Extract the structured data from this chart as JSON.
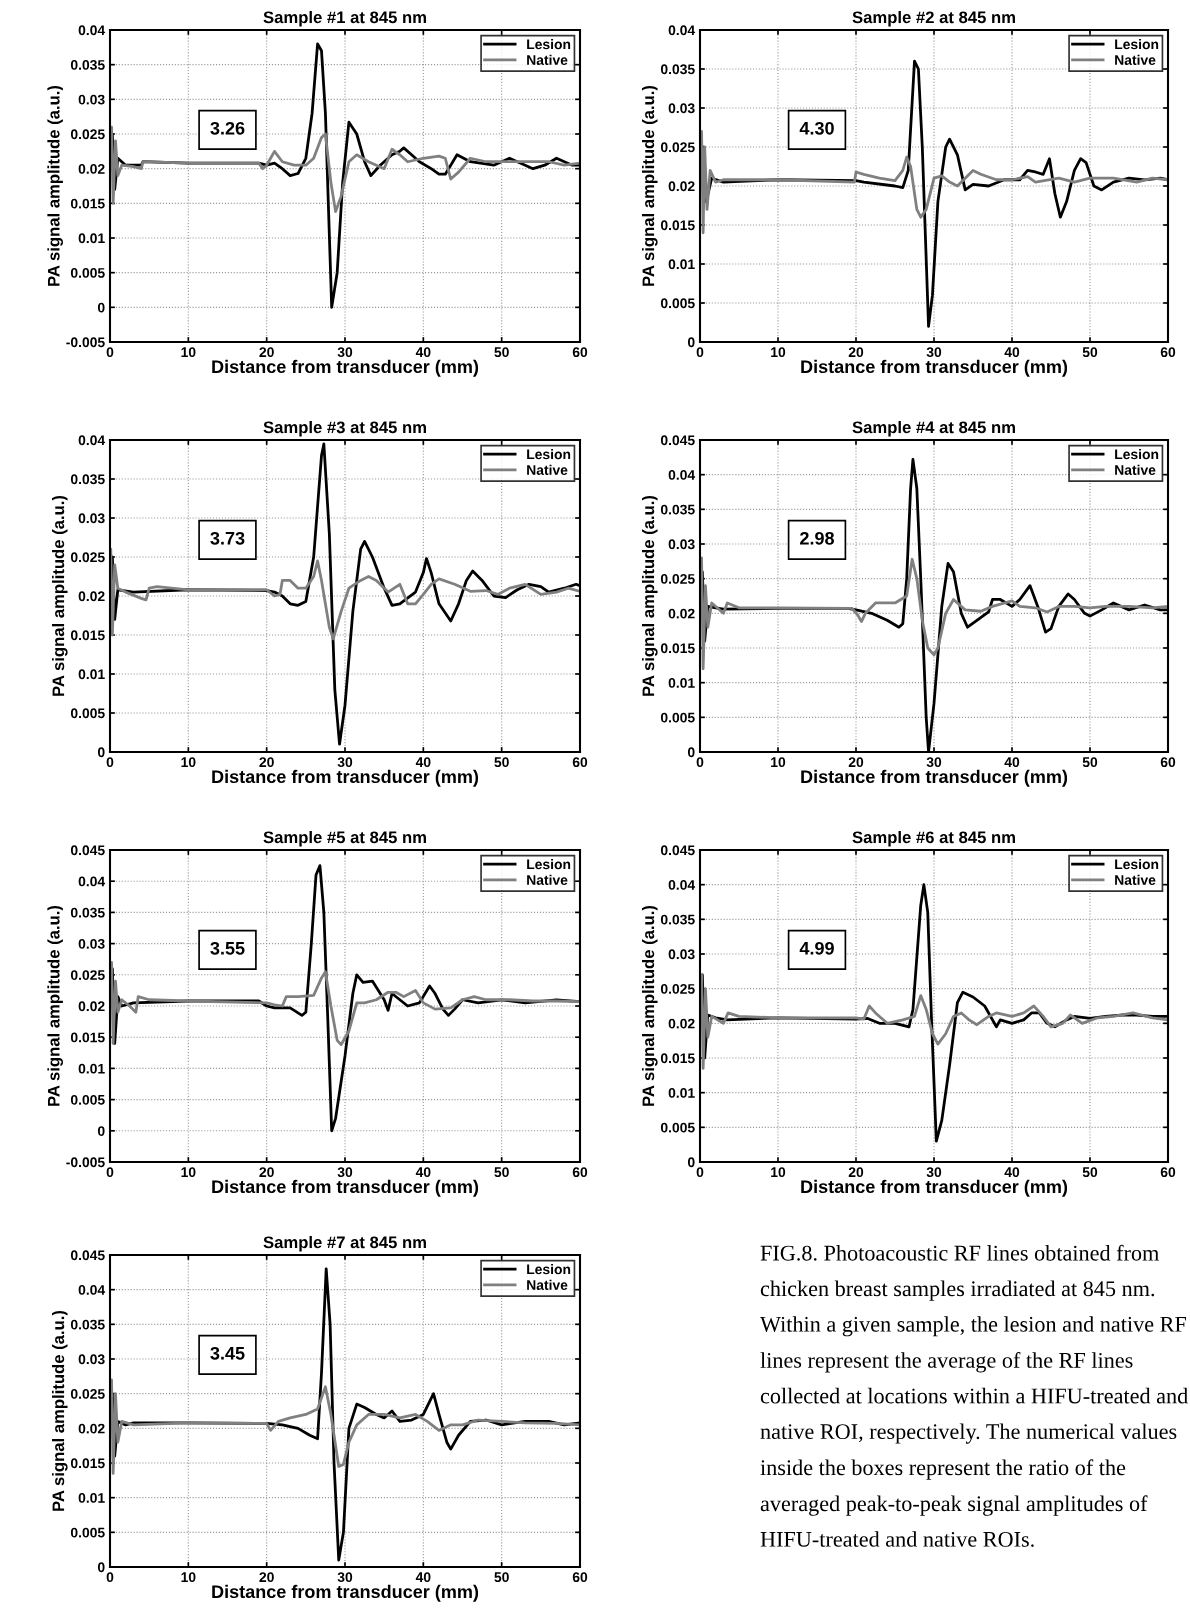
{
  "chart_data": [
    {
      "type": "line",
      "title": "Sample #1 at 845 nm",
      "xlabel": "Distance from transducer (mm)",
      "ylabel": "PA signal amplitude (a.u.)",
      "xlim": [
        0,
        60
      ],
      "xticks": [
        0,
        10,
        20,
        30,
        40,
        50,
        60
      ],
      "ylim": [
        -0.005,
        0.04
      ],
      "yticks": [
        -0.005,
        0,
        0.005,
        0.01,
        0.015,
        0.02,
        0.025,
        0.03,
        0.035,
        0.04
      ],
      "grid": true,
      "legend": "top right",
      "line_style": "solid",
      "annotations": [
        "3.26"
      ],
      "series": [
        {
          "name": "Lesion",
          "color": "#000000",
          "x": [
            0,
            0.3,
            0.6,
            1,
            2,
            4,
            4.2,
            10,
            19,
            20,
            21,
            22,
            23,
            24,
            25,
            25.8,
            26.5,
            27,
            27.5,
            28.3,
            29,
            29.7,
            30.5,
            31.5,
            32.5,
            33.3,
            34.5,
            36,
            37,
            37.5,
            38.5,
            39.5,
            41,
            42,
            42.8,
            43.5,
            44.3,
            46,
            49,
            51,
            52,
            54,
            55.5,
            57,
            59,
            60
          ],
          "values": [
            0.021,
            0.025,
            0.017,
            0.0215,
            0.0205,
            0.0205,
            0.021,
            0.0208,
            0.0208,
            0.0205,
            0.0208,
            0.02,
            0.019,
            0.0193,
            0.0215,
            0.028,
            0.038,
            0.037,
            0.028,
            0.0,
            0.005,
            0.018,
            0.0267,
            0.025,
            0.021,
            0.019,
            0.0205,
            0.022,
            0.0225,
            0.023,
            0.022,
            0.021,
            0.02,
            0.0192,
            0.0192,
            0.0205,
            0.022,
            0.021,
            0.0205,
            0.0215,
            0.021,
            0.02,
            0.0205,
            0.0215,
            0.0205,
            0.0205
          ]
        },
        {
          "name": "Native",
          "color": "#808080",
          "x": [
            0,
            0.2,
            0.4,
            0.7,
            1,
            1.5,
            3,
            4,
            4.2,
            10,
            19,
            19.5,
            20,
            20.5,
            21,
            22,
            23.5,
            25,
            26,
            27,
            27.5,
            28.2,
            28.8,
            29.5,
            30.5,
            31.5,
            33,
            35,
            36,
            37,
            38,
            40,
            42,
            42.8,
            43.5,
            44.5,
            46,
            48,
            51,
            53,
            56,
            58,
            60
          ],
          "values": [
            0.02,
            0.026,
            0.015,
            0.024,
            0.019,
            0.0205,
            0.0203,
            0.02,
            0.021,
            0.0208,
            0.0208,
            0.02,
            0.0205,
            0.0215,
            0.0225,
            0.021,
            0.0205,
            0.0205,
            0.0215,
            0.0245,
            0.025,
            0.018,
            0.0138,
            0.016,
            0.021,
            0.022,
            0.021,
            0.02,
            0.0228,
            0.022,
            0.021,
            0.0215,
            0.0218,
            0.0215,
            0.0185,
            0.0195,
            0.0215,
            0.021,
            0.021,
            0.021,
            0.021,
            0.0205,
            0.0208
          ]
        }
      ]
    },
    {
      "type": "line",
      "title": "Sample #2 at 845 nm",
      "xlabel": "Distance from transducer (mm)",
      "ylabel": "PA signal amplitude (a.u.)",
      "xlim": [
        0,
        60
      ],
      "xticks": [
        0,
        10,
        20,
        30,
        40,
        50,
        60
      ],
      "ylim": [
        0,
        0.04
      ],
      "yticks": [
        0,
        0.005,
        0.01,
        0.015,
        0.02,
        0.025,
        0.03,
        0.035,
        0.04
      ],
      "grid": true,
      "legend": "top right",
      "line_style": "solid",
      "annotations": [
        "4.30"
      ],
      "series": [
        {
          "name": "Lesion",
          "color": "#000000",
          "x": [
            0,
            0.4,
            0.8,
            1.5,
            3,
            10,
            20,
            21,
            25,
            26,
            26.7,
            27.5,
            28,
            28.5,
            29.3,
            29.8,
            30.5,
            31.5,
            32,
            33,
            34,
            35,
            37,
            39,
            41,
            42,
            43,
            44,
            44.8,
            45.5,
            46.2,
            47,
            48,
            48.8,
            49.5,
            50.5,
            51.5,
            53,
            55,
            57,
            59,
            60
          ],
          "values": [
            0.021,
            0.025,
            0.018,
            0.021,
            0.0205,
            0.0208,
            0.0207,
            0.0205,
            0.02,
            0.0198,
            0.022,
            0.036,
            0.035,
            0.025,
            0.002,
            0.006,
            0.018,
            0.025,
            0.026,
            0.024,
            0.0195,
            0.0202,
            0.02,
            0.0208,
            0.0208,
            0.022,
            0.0218,
            0.0215,
            0.0235,
            0.019,
            0.016,
            0.018,
            0.022,
            0.0235,
            0.023,
            0.02,
            0.0195,
            0.0205,
            0.021,
            0.0208,
            0.021,
            0.0208
          ]
        },
        {
          "name": "Native",
          "color": "#808080",
          "x": [
            0,
            0.2,
            0.4,
            0.6,
            0.9,
            1.3,
            2,
            3,
            10,
            19.8,
            20,
            21,
            23,
            25,
            26,
            26.5,
            27,
            27.8,
            28.3,
            29,
            30,
            31,
            32,
            33,
            34,
            35,
            36,
            38,
            40,
            42,
            43,
            46,
            48,
            50,
            53,
            56,
            58,
            60
          ],
          "values": [
            0.02,
            0.027,
            0.014,
            0.025,
            0.017,
            0.022,
            0.0205,
            0.0208,
            0.0208,
            0.0205,
            0.0218,
            0.0215,
            0.021,
            0.0207,
            0.022,
            0.0237,
            0.0225,
            0.017,
            0.016,
            0.017,
            0.021,
            0.0213,
            0.0205,
            0.02,
            0.021,
            0.022,
            0.0215,
            0.0208,
            0.0208,
            0.0212,
            0.0205,
            0.021,
            0.0205,
            0.021,
            0.021,
            0.0205,
            0.021,
            0.0208
          ]
        }
      ]
    },
    {
      "type": "line",
      "title": "Sample #3 at 845 nm",
      "xlabel": "Distance from transducer (mm)",
      "ylabel": "PA signal amplitude (a.u.)",
      "xlim": [
        0,
        60
      ],
      "xticks": [
        0,
        10,
        20,
        30,
        40,
        50,
        60
      ],
      "ylim": [
        0,
        0.04
      ],
      "yticks": [
        0,
        0.005,
        0.01,
        0.015,
        0.02,
        0.025,
        0.03,
        0.035,
        0.04
      ],
      "grid": true,
      "legend": "top right",
      "line_style": "solid",
      "annotations": [
        "3.73"
      ],
      "series": [
        {
          "name": "Lesion",
          "color": "#000000",
          "x": [
            0,
            0.3,
            0.6,
            1,
            3,
            10,
            20,
            21,
            22,
            23,
            24,
            25,
            26,
            27,
            27.3,
            28,
            28.7,
            29.3,
            30,
            31,
            32,
            32.5,
            33.5,
            35,
            36,
            37,
            39,
            40,
            40.4,
            41,
            42,
            43.5,
            44.5,
            45.5,
            46.3,
            47.5,
            49,
            50.5,
            52,
            53.5,
            55,
            56,
            58,
            59.5,
            60
          ],
          "values": [
            0.021,
            0.025,
            0.017,
            0.0208,
            0.0205,
            0.0208,
            0.0207,
            0.0205,
            0.02,
            0.019,
            0.0188,
            0.0193,
            0.025,
            0.038,
            0.0395,
            0.028,
            0.008,
            0.001,
            0.006,
            0.018,
            0.026,
            0.027,
            0.025,
            0.021,
            0.0188,
            0.019,
            0.0205,
            0.023,
            0.0248,
            0.023,
            0.019,
            0.0168,
            0.019,
            0.022,
            0.0232,
            0.022,
            0.02,
            0.0198,
            0.0208,
            0.0215,
            0.0212,
            0.0205,
            0.021,
            0.0215,
            0.0213
          ]
        },
        {
          "name": "Native",
          "color": "#808080",
          "x": [
            0,
            0.1,
            0.3,
            0.6,
            1,
            2,
            4,
            4.6,
            5,
            6,
            10,
            20,
            21,
            21.7,
            22,
            23,
            24,
            25,
            26,
            26.5,
            27,
            28,
            28.5,
            29.5,
            30.5,
            32,
            33,
            34,
            35.5,
            37,
            38,
            39,
            40,
            41,
            42,
            44,
            46,
            48,
            49.5,
            51,
            53,
            55,
            57,
            58.5,
            60
          ],
          "values": [
            0.02,
            0.026,
            0.015,
            0.024,
            0.021,
            0.0205,
            0.0197,
            0.0195,
            0.021,
            0.0212,
            0.0208,
            0.0208,
            0.02,
            0.0202,
            0.022,
            0.022,
            0.021,
            0.021,
            0.0225,
            0.0245,
            0.022,
            0.016,
            0.0145,
            0.018,
            0.021,
            0.022,
            0.0225,
            0.022,
            0.0205,
            0.0215,
            0.019,
            0.019,
            0.0202,
            0.0215,
            0.0222,
            0.0215,
            0.0206,
            0.0207,
            0.0202,
            0.021,
            0.0215,
            0.0202,
            0.0205,
            0.021,
            0.0206
          ]
        }
      ]
    },
    {
      "type": "line",
      "title": "Sample #4 at 845 nm",
      "xlabel": "Distance from transducer (mm)",
      "ylabel": "PA signal amplitude (a.u.)",
      "xlim": [
        0,
        60
      ],
      "xticks": [
        0,
        10,
        20,
        30,
        40,
        50,
        60
      ],
      "ylim": [
        0,
        0.045
      ],
      "yticks": [
        0,
        0.005,
        0.01,
        0.015,
        0.02,
        0.025,
        0.03,
        0.035,
        0.04,
        0.045
      ],
      "grid": true,
      "legend": "top right",
      "line_style": "solid",
      "annotations": [
        "2.98"
      ],
      "series": [
        {
          "name": "Lesion",
          "color": "#000000",
          "x": [
            0,
            0.3,
            0.6,
            1,
            2,
            3,
            10,
            19,
            20,
            22,
            24,
            25.5,
            26,
            26.5,
            27,
            27.3,
            27.8,
            28.3,
            29,
            29.3,
            30,
            31,
            31.8,
            32.5,
            33.5,
            34.3,
            35.5,
            37,
            37.5,
            38.5,
            40,
            41,
            42.3,
            43.3,
            44.3,
            45,
            46,
            47.2,
            48,
            49.3,
            50,
            51.5,
            53,
            55,
            57,
            59,
            60
          ],
          "values": [
            0.021,
            0.026,
            0.016,
            0.021,
            0.0208,
            0.0206,
            0.0207,
            0.0207,
            0.0205,
            0.02,
            0.019,
            0.018,
            0.0185,
            0.025,
            0.038,
            0.0422,
            0.038,
            0.025,
            0.005,
            0.0,
            0.007,
            0.021,
            0.0272,
            0.026,
            0.02,
            0.018,
            0.019,
            0.0202,
            0.022,
            0.022,
            0.021,
            0.022,
            0.024,
            0.021,
            0.0173,
            0.0178,
            0.021,
            0.0228,
            0.022,
            0.02,
            0.0196,
            0.0205,
            0.0215,
            0.0205,
            0.0212,
            0.0205,
            0.0205
          ]
        },
        {
          "name": "Native",
          "color": "#808080",
          "x": [
            0,
            0.2,
            0.4,
            0.7,
            1,
            1.5,
            3,
            3.5,
            5,
            10,
            19.5,
            20.2,
            20.7,
            21.2,
            22.5,
            25,
            26.5,
            27.2,
            27.8,
            28.5,
            29.2,
            30,
            30.5,
            31.5,
            32.5,
            34,
            36,
            37.5,
            40,
            41,
            43,
            44.5,
            46,
            48,
            50,
            52,
            55,
            58,
            60
          ],
          "values": [
            0.02,
            0.028,
            0.012,
            0.024,
            0.018,
            0.0215,
            0.02,
            0.0215,
            0.0208,
            0.0208,
            0.0207,
            0.0198,
            0.0188,
            0.02,
            0.0215,
            0.0215,
            0.0225,
            0.0278,
            0.025,
            0.019,
            0.015,
            0.014,
            0.015,
            0.02,
            0.022,
            0.0205,
            0.0203,
            0.021,
            0.0218,
            0.021,
            0.0208,
            0.0202,
            0.021,
            0.021,
            0.0208,
            0.021,
            0.021,
            0.0208,
            0.021
          ]
        }
      ]
    },
    {
      "type": "line",
      "title": "Sample #5 at 845 nm",
      "xlabel": "Distance from transducer (mm)",
      "ylabel": "PA signal amplitude (a.u.)",
      "xlim": [
        0,
        60
      ],
      "xticks": [
        0,
        10,
        20,
        30,
        40,
        50,
        60
      ],
      "ylim": [
        -0.005,
        0.045
      ],
      "yticks": [
        -0.005,
        0,
        0.005,
        0.01,
        0.015,
        0.02,
        0.025,
        0.03,
        0.035,
        0.04,
        0.045
      ],
      "grid": true,
      "legend": "top right",
      "line_style": "solid",
      "annotations": [
        "3.55"
      ],
      "series": [
        {
          "name": "Lesion",
          "color": "#000000",
          "x": [
            0,
            0.3,
            0.6,
            1,
            1.5,
            3,
            10,
            19,
            20,
            21,
            23,
            24.5,
            25,
            25.7,
            26.3,
            26.8,
            27.3,
            27.8,
            28.3,
            28.8,
            30,
            31,
            31.5,
            32.3,
            33.5,
            35,
            35.5,
            36,
            38,
            39.5,
            40.8,
            41.5,
            42.5,
            43.2,
            44,
            45,
            47,
            50,
            53,
            57,
            60
          ],
          "values": [
            0.021,
            0.026,
            0.014,
            0.0215,
            0.02,
            0.0205,
            0.0208,
            0.0208,
            0.02,
            0.0197,
            0.0197,
            0.0185,
            0.019,
            0.03,
            0.041,
            0.0425,
            0.035,
            0.018,
            0.0,
            0.002,
            0.012,
            0.022,
            0.025,
            0.0238,
            0.024,
            0.021,
            0.0193,
            0.022,
            0.02,
            0.0205,
            0.0232,
            0.022,
            0.0195,
            0.0185,
            0.0195,
            0.021,
            0.0205,
            0.021,
            0.0205,
            0.021,
            0.0207
          ]
        },
        {
          "name": "Native",
          "color": "#808080",
          "x": [
            0,
            0.2,
            0.4,
            0.7,
            1,
            1.5,
            2.5,
            3.3,
            3.6,
            5,
            10,
            20,
            21,
            22,
            22.5,
            24,
            26,
            27,
            27.5,
            28.2,
            29,
            29.5,
            30.5,
            31.5,
            32.5,
            34,
            35.5,
            36.5,
            37.5,
            39,
            40,
            41.5,
            43.5,
            45,
            46.5,
            48,
            51,
            54,
            57,
            60
          ],
          "values": [
            0.02,
            0.027,
            0.014,
            0.024,
            0.019,
            0.021,
            0.02,
            0.019,
            0.0215,
            0.021,
            0.0208,
            0.0205,
            0.0202,
            0.02,
            0.0215,
            0.0215,
            0.0217,
            0.0245,
            0.0255,
            0.02,
            0.0145,
            0.0138,
            0.016,
            0.0205,
            0.0205,
            0.021,
            0.0222,
            0.0222,
            0.0215,
            0.0225,
            0.0205,
            0.0195,
            0.0197,
            0.021,
            0.0215,
            0.021,
            0.021,
            0.0208,
            0.0208,
            0.0207
          ]
        }
      ]
    },
    {
      "type": "line",
      "title": "Sample #6 at 845 nm",
      "xlabel": "Distance from transducer (mm)",
      "ylabel": "PA signal amplitude (a.u.)",
      "xlim": [
        0,
        60
      ],
      "xticks": [
        0,
        10,
        20,
        30,
        40,
        50,
        60
      ],
      "ylim": [
        0,
        0.045
      ],
      "yticks": [
        0,
        0.005,
        0.01,
        0.015,
        0.02,
        0.025,
        0.03,
        0.035,
        0.04,
        0.045
      ],
      "grid": true,
      "legend": "top right",
      "line_style": "solid",
      "annotations": [
        "4.99"
      ],
      "series": [
        {
          "name": "Lesion",
          "color": "#000000",
          "x": [
            0,
            0.3,
            0.6,
            1,
            2,
            3.5,
            10,
            20,
            21.5,
            23,
            25,
            26.8,
            27.3,
            28.3,
            28.7,
            29.2,
            29.7,
            30.3,
            31,
            32,
            33,
            33.7,
            35,
            36.5,
            37.5,
            38,
            38.5,
            40,
            41.5,
            42.5,
            43.5,
            44.5,
            45.5,
            47,
            48,
            50,
            52,
            54,
            56,
            58,
            60
          ],
          "values": [
            0.021,
            0.027,
            0.015,
            0.0212,
            0.0208,
            0.0205,
            0.0208,
            0.0206,
            0.0207,
            0.02,
            0.02,
            0.0195,
            0.022,
            0.037,
            0.04,
            0.036,
            0.02,
            0.003,
            0.006,
            0.014,
            0.023,
            0.0245,
            0.0238,
            0.0225,
            0.0205,
            0.0195,
            0.0205,
            0.02,
            0.0205,
            0.0215,
            0.0215,
            0.02,
            0.0195,
            0.0205,
            0.021,
            0.0207,
            0.021,
            0.0212,
            0.0212,
            0.021,
            0.021
          ]
        },
        {
          "name": "Native",
          "color": "#808080",
          "x": [
            0,
            0.2,
            0.4,
            0.7,
            1,
            1.5,
            3,
            3.6,
            5,
            10,
            20,
            21,
            21.7,
            22.5,
            24,
            26,
            27.5,
            28.3,
            29,
            29.8,
            30.5,
            31.5,
            32.5,
            33.5,
            34.5,
            35.5,
            37,
            38,
            40,
            41.5,
            42.8,
            44,
            45,
            46.5,
            47.5,
            49,
            51,
            53,
            55.5,
            58,
            60
          ],
          "values": [
            0.02,
            0.027,
            0.0135,
            0.025,
            0.018,
            0.021,
            0.02,
            0.0215,
            0.021,
            0.0208,
            0.0208,
            0.0206,
            0.0225,
            0.0215,
            0.02,
            0.0205,
            0.021,
            0.024,
            0.022,
            0.0185,
            0.017,
            0.0185,
            0.021,
            0.0215,
            0.0205,
            0.0198,
            0.021,
            0.0215,
            0.021,
            0.0215,
            0.0225,
            0.021,
            0.0195,
            0.02,
            0.0212,
            0.02,
            0.0208,
            0.021,
            0.0215,
            0.0208,
            0.0205
          ]
        }
      ]
    },
    {
      "type": "line",
      "title": "Sample #7 at 845 nm",
      "xlabel": "Distance from transducer (mm)",
      "ylabel": "PA signal amplitude (a.u.)",
      "xlim": [
        0,
        60
      ],
      "xticks": [
        0,
        10,
        20,
        30,
        40,
        50,
        60
      ],
      "ylim": [
        0,
        0.045
      ],
      "yticks": [
        0,
        0.005,
        0.01,
        0.015,
        0.02,
        0.025,
        0.03,
        0.035,
        0.04,
        0.045
      ],
      "grid": true,
      "legend": "top right",
      "line_style": "solid",
      "annotations": [
        "3.45"
      ],
      "series": [
        {
          "name": "Lesion",
          "color": "#000000",
          "x": [
            0,
            0.3,
            0.6,
            1,
            2,
            3,
            10,
            20,
            22,
            24,
            25.5,
            26.5,
            27,
            27.6,
            28.1,
            28.6,
            29.2,
            29.8,
            30.5,
            31.5,
            32.5,
            34,
            35,
            36,
            37,
            38.5,
            40,
            41.3,
            42,
            43,
            43.5,
            44.5,
            46,
            48,
            50,
            53,
            56,
            58,
            60
          ],
          "values": [
            0.021,
            0.025,
            0.016,
            0.021,
            0.0205,
            0.0208,
            0.0208,
            0.0207,
            0.0205,
            0.02,
            0.019,
            0.0185,
            0.028,
            0.043,
            0.035,
            0.015,
            0.001,
            0.005,
            0.02,
            0.0235,
            0.023,
            0.022,
            0.0215,
            0.0225,
            0.021,
            0.0212,
            0.022,
            0.025,
            0.022,
            0.018,
            0.017,
            0.019,
            0.021,
            0.0212,
            0.0205,
            0.021,
            0.021,
            0.0205,
            0.0208
          ]
        },
        {
          "name": "Native",
          "color": "#808080",
          "x": [
            0,
            0.2,
            0.4,
            0.7,
            1,
            1.5,
            3,
            10,
            20,
            20.5,
            21.5,
            23,
            25,
            26.5,
            27.5,
            28.2,
            29.2,
            29.8,
            30.5,
            31.5,
            33,
            35,
            37,
            39,
            40.5,
            42,
            43.5,
            45,
            47,
            50,
            53,
            57,
            60
          ],
          "values": [
            0.02,
            0.027,
            0.0135,
            0.025,
            0.018,
            0.021,
            0.0205,
            0.0208,
            0.0207,
            0.0197,
            0.021,
            0.0215,
            0.022,
            0.0228,
            0.026,
            0.022,
            0.0145,
            0.0148,
            0.018,
            0.0205,
            0.022,
            0.022,
            0.0215,
            0.022,
            0.021,
            0.0197,
            0.0205,
            0.0205,
            0.0212,
            0.021,
            0.0208,
            0.0207,
            0.0205
          ]
        }
      ]
    },
    {
      "type": "other",
      "annotations": [
        "FIG.8. Photoacoustic RF lines obtained from chicken breast samples irradiated at 845 nm. Within a given sample, the lesion and native RF lines represent the average of the RF lines collected at locations within a HIFU-treated and native ROI, respectively. The numerical values inside the boxes represent the ratio of the averaged peak-to-peak signal amplitudes of HIFU-treated and native ROIs."
      ]
    }
  ]
}
